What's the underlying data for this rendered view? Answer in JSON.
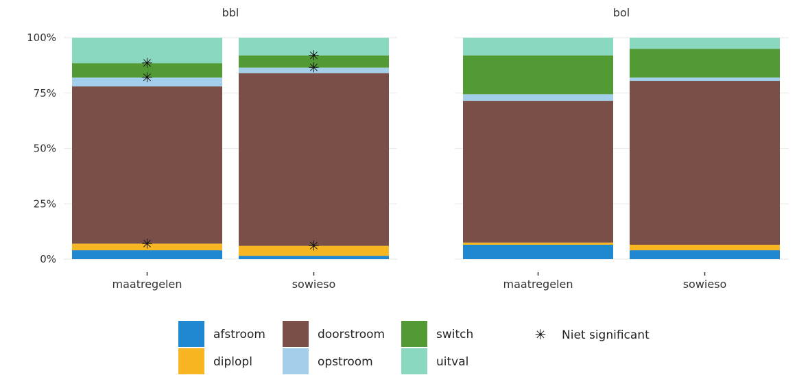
{
  "chart_data": {
    "type": "bar",
    "stacked": true,
    "normalized": true,
    "yticks": [
      "0%",
      "25%",
      "50%",
      "75%",
      "100%"
    ],
    "ylim": [
      0,
      100
    ],
    "categories": [
      "maatregelen",
      "sowieso"
    ],
    "series_names": [
      "afstroom",
      "diplopl",
      "doorstroom",
      "opstroom",
      "switch",
      "uitval"
    ],
    "colors": {
      "afstroom": "#1f88d0",
      "diplopl": "#f8b622",
      "doorstroom": "#7a4f47",
      "opstroom": "#a3cfea",
      "switch": "#519a34",
      "uitval": "#8ad8bf"
    },
    "legend_position": "bottom",
    "marker_label": "Niet significant",
    "panels": [
      {
        "title": "bbl",
        "bars": [
          {
            "category": "maatregelen",
            "values": {
              "afstroom": 4,
              "diplopl": 3,
              "doorstroom": 71,
              "opstroom": 4,
              "switch": 6.5,
              "uitval": 11.5
            },
            "not_significant": [
              "diplopl",
              "opstroom",
              "switch"
            ]
          },
          {
            "category": "sowieso",
            "values": {
              "afstroom": 1.5,
              "diplopl": 4.5,
              "doorstroom": 78,
              "opstroom": 2.5,
              "switch": 5.5,
              "uitval": 8
            },
            "not_significant": [
              "diplopl",
              "opstroom",
              "switch"
            ]
          }
        ]
      },
      {
        "title": "bol",
        "bars": [
          {
            "category": "maatregelen",
            "values": {
              "afstroom": 6.5,
              "diplopl": 1,
              "doorstroom": 64,
              "opstroom": 3,
              "switch": 17.5,
              "uitval": 8
            },
            "not_significant": []
          },
          {
            "category": "sowieso",
            "values": {
              "afstroom": 4,
              "diplopl": 2.5,
              "doorstroom": 74,
              "opstroom": 1.5,
              "switch": 13,
              "uitval": 5
            },
            "not_significant": []
          }
        ]
      }
    ],
    "legend": {
      "items": [
        {
          "key": "afstroom",
          "label": "afstroom"
        },
        {
          "key": "diplopl",
          "label": "diplopl"
        },
        {
          "key": "doorstroom",
          "label": "doorstroom"
        },
        {
          "key": "opstroom",
          "label": "opstroom"
        },
        {
          "key": "switch",
          "label": "switch"
        },
        {
          "key": "uitval",
          "label": "uitval"
        }
      ]
    }
  }
}
